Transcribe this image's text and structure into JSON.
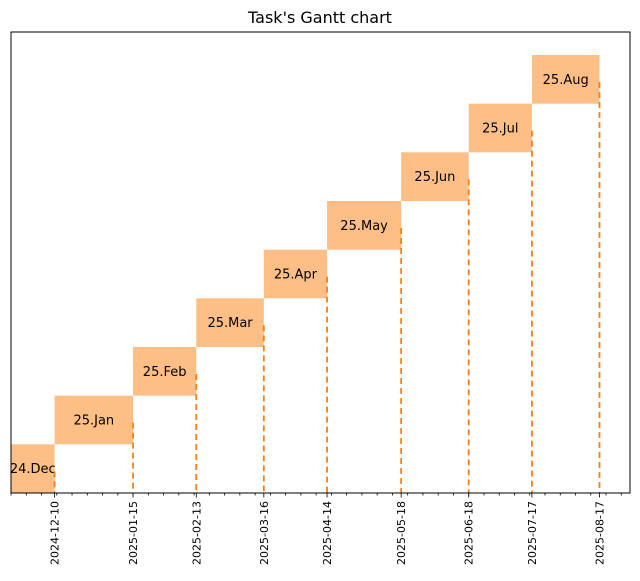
{
  "chart_data": {
    "type": "gantt",
    "title": "Task's Gantt chart",
    "bar_color": "#fdbf85",
    "marker_color": "#ff7f0e",
    "tasks": [
      {
        "label": "24.Dec",
        "start": "2024-11-20",
        "end": "2024-12-10"
      },
      {
        "label": "25.Jan",
        "start": "2024-12-10",
        "end": "2025-01-15"
      },
      {
        "label": "25.Feb",
        "start": "2025-01-15",
        "end": "2025-02-13"
      },
      {
        "label": "25.Mar",
        "start": "2025-02-13",
        "end": "2025-03-16"
      },
      {
        "label": "25.Apr",
        "start": "2025-03-16",
        "end": "2025-04-14"
      },
      {
        "label": "25.May",
        "start": "2025-04-14",
        "end": "2025-05-18"
      },
      {
        "label": "25.Jun",
        "start": "2025-05-18",
        "end": "2025-06-18"
      },
      {
        "label": "25.Jul",
        "start": "2025-06-18",
        "end": "2025-07-17"
      },
      {
        "label": "25.Aug",
        "start": "2025-07-17",
        "end": "2025-08-17"
      }
    ],
    "x_ticks": [
      "2024-12-10",
      "2025-01-15",
      "2025-02-13",
      "2025-03-16",
      "2025-04-14",
      "2025-05-18",
      "2025-06-18",
      "2025-07-17",
      "2025-08-17"
    ],
    "xlim": [
      "2024-11-20",
      "2025-08-31"
    ],
    "xlabel": "",
    "ylabel": "",
    "grid": false,
    "legend": "none"
  }
}
